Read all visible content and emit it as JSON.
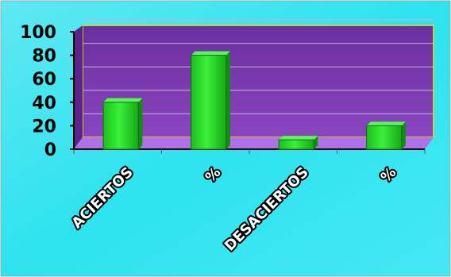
{
  "chart_data": {
    "type": "bar",
    "title": "",
    "xlabel": "",
    "ylabel": "",
    "categories": [
      "ACIERTOS",
      "%",
      "DESACIERTOS",
      "%"
    ],
    "values": [
      40,
      80,
      8,
      20
    ],
    "ylim": [
      0,
      100
    ],
    "yticks": [
      "0",
      "20",
      "40",
      "60",
      "80",
      "100"
    ],
    "grid": true,
    "legend": "none",
    "colors": {
      "background": "#33e6ee",
      "plot_area": "#7a3aa8",
      "floor": "#b070e8",
      "bar": "#22dd22",
      "bar_outline": "#116611"
    }
  }
}
